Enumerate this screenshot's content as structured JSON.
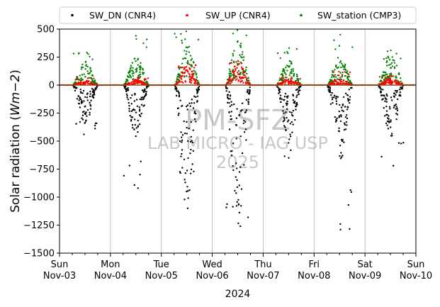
{
  "chart_data": {
    "type": "scatter",
    "ylabel": "Solar radiation ($Wm{-2}$)",
    "ylabel_display": [
      "Solar radiation (",
      "Wm",
      "−2",
      ")"
    ],
    "xlabel": "2024",
    "ylim": [
      -1500,
      500
    ],
    "yticks": [
      500,
      250,
      0,
      -250,
      -500,
      -750,
      -1000,
      -1250,
      -1500
    ],
    "ytick_labels": [
      "500",
      "250",
      "0",
      "−250",
      "−500",
      "−750",
      "−1000",
      "−1250",
      "−1500"
    ],
    "xlim": [
      "2024-11-03",
      "2024-11-10"
    ],
    "xticks": [
      {
        "date": "2024-11-03",
        "day": "Sun",
        "label": "Nov-03"
      },
      {
        "date": "2024-11-04",
        "day": "Mon",
        "label": "Nov-04"
      },
      {
        "date": "2024-11-05",
        "day": "Tue",
        "label": "Nov-05"
      },
      {
        "date": "2024-11-06",
        "day": "Wed",
        "label": "Nov-06"
      },
      {
        "date": "2024-11-07",
        "day": "Thu",
        "label": "Nov-07"
      },
      {
        "date": "2024-11-08",
        "day": "Fri",
        "label": "Nov-08"
      },
      {
        "date": "2024-11-09",
        "day": "Sat",
        "label": "Nov-09"
      },
      {
        "date": "2024-11-10",
        "day": "Sun",
        "label": "Nov-10"
      }
    ],
    "grid": "vertical-major",
    "legend_placement": "top",
    "series": [
      {
        "name": "SW_DN (CNR4)",
        "color": "#000000",
        "daily_extreme": [
          -440,
          -920,
          -1100,
          -1260,
          -650,
          -1290,
          -720
        ],
        "daily_typical": [
          -250,
          -330,
          -750,
          -900,
          -350,
          -500,
          -330
        ]
      },
      {
        "name": "SW_UP (CNR4)",
        "color": "#ff0000",
        "daily_extreme": [
          60,
          65,
          185,
          215,
          70,
          120,
          80
        ],
        "daily_typical": [
          30,
          35,
          120,
          140,
          40,
          45,
          45
        ]
      },
      {
        "name": "SW_station (CMP3)",
        "color": "#008000",
        "daily_extreme": [
          290,
          440,
          480,
          490,
          330,
          450,
          310
        ],
        "daily_typical": [
          150,
          180,
          260,
          300,
          160,
          200,
          190
        ]
      }
    ],
    "watermark": [
      "PM-SFZ",
      "LAB MICRO - IAG USP",
      "2025"
    ]
  }
}
